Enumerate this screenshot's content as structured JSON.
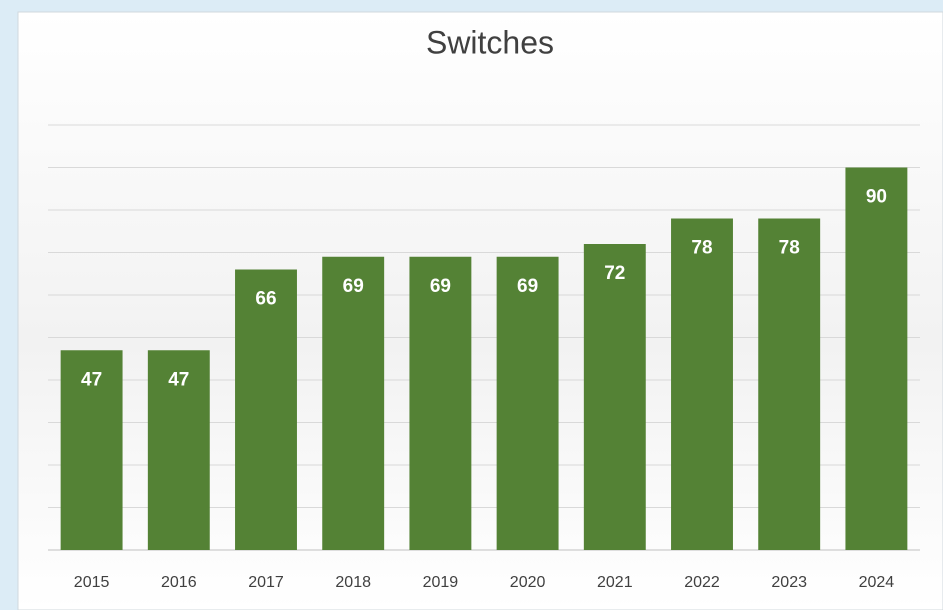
{
  "chart_data": {
    "type": "bar",
    "title": "Switches",
    "categories": [
      "2015",
      "2016",
      "2017",
      "2018",
      "2019",
      "2020",
      "2021",
      "2022",
      "2023",
      "2024"
    ],
    "values": [
      47,
      47,
      66,
      69,
      69,
      69,
      72,
      78,
      78,
      90
    ],
    "color": "#548235",
    "ylim": [
      0,
      100
    ],
    "yticks": [
      0,
      10,
      20,
      30,
      40,
      50,
      60,
      70,
      80,
      90,
      100
    ],
    "grid": true
  }
}
